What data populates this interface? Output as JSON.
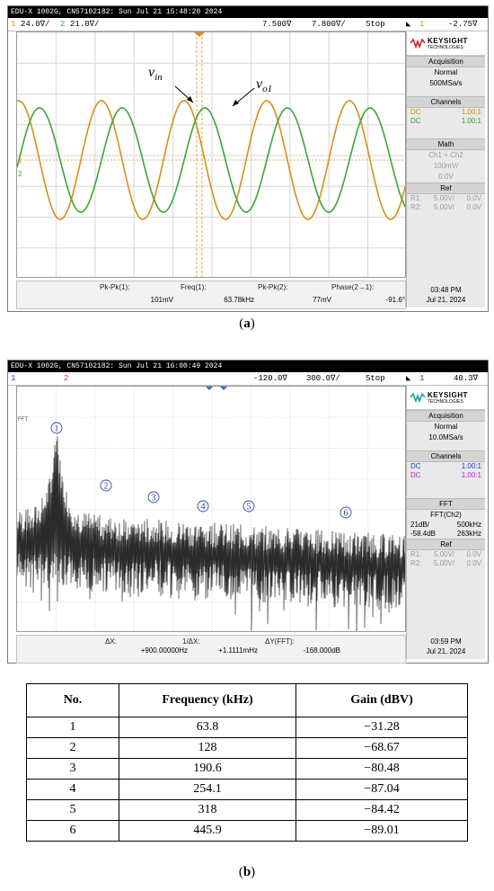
{
  "scope_a": {
    "header": "EDU-X 1002G, CN57102182: Sun Jul 21 15:48:20 2024",
    "ch1_num": "1",
    "ch1_scale": "24.0∇/",
    "ch2_num": "2",
    "ch2_scale": "21.0∇/",
    "time_pos": "7.500∇",
    "time_scale": "7.800∇/",
    "run_state": "Stop",
    "trig_src": "1",
    "trig_level": "-2.75∇",
    "brand": "KEYSIGHT",
    "brand_sub": "TECHNOLOGIES",
    "acquisition": {
      "title": "Acquisition",
      "mode": "Normal",
      "rate": "500MSa/s"
    },
    "channels": {
      "title": "Channels",
      "rows": [
        {
          "coupling": "DC",
          "ratio": "1.00:1"
        },
        {
          "coupling": "DC",
          "ratio": "1.00:1"
        }
      ]
    },
    "math": {
      "title": "Math",
      "func": "Ch1 + Ch2",
      "scale": "100mV/",
      "offset": "0.0V"
    },
    "ref": {
      "title": "Ref",
      "r1": "R1:",
      "r1_scale": "5.00V/",
      "r1_off": "0.0V",
      "r2": "R2:",
      "r2_scale": "5.00V/",
      "r2_off": "0.0V"
    },
    "time_of_day": "03:48 PM",
    "date": "Jul 21, 2024",
    "label_vin": "v",
    "label_vin_sub": "in",
    "label_vo1": "v",
    "label_vo1_sub": "o1",
    "gnd1": "1",
    "gnd2": "2",
    "measurements": [
      {
        "name": "Pk-Pk(1):",
        "value": "101mV"
      },
      {
        "name": "Freq(1):",
        "value": "63.78kHz"
      },
      {
        "name": "Pk-Pk(2):",
        "value": "77mV"
      },
      {
        "name": "Phase(2→1):",
        "value": "-91.6°"
      }
    ],
    "colors": {
      "ch1": "#d98e1a",
      "ch2": "#3aa63a"
    }
  },
  "caption_a": "a",
  "scope_b": {
    "header": "EDU-X 1002G, CN57102182: Sun Jul 21 16:00:49 2024",
    "ch1_num": "1",
    "ch2_num": "2",
    "time_pos": "-120.0∇",
    "time_scale": "300.0∇/",
    "run_state": "Stop",
    "trig_src": "1",
    "trig_level": "40.3∇",
    "brand": "KEYSIGHT",
    "brand_sub": "TECHNOLOGIES",
    "acquisition": {
      "title": "Acquisition",
      "mode": "Normal",
      "rate": "10.0MSa/s"
    },
    "channels": {
      "title": "Channels",
      "rows": [
        {
          "coupling": "DC",
          "ratio": "1.00:1"
        },
        {
          "coupling": "DC",
          "ratio": "1.00:1"
        }
      ]
    },
    "fft": {
      "title": "FFT",
      "func": "FFT(Ch2)",
      "scale": "21dB/",
      "span": "500kHz",
      "offset": "-58.4dB",
      "center": "263kHz"
    },
    "ref": {
      "title": "Ref",
      "r1": "R1:",
      "r1_scale": "5.00V/",
      "r1_off": "0.0V",
      "r2": "R2:",
      "r2_scale": "5.00V/",
      "r2_off": "0.0V"
    },
    "time_of_day": "03:59 PM",
    "date": "Jul 21, 2024",
    "fft_marker": "FFT",
    "peaks": [
      "1",
      "2",
      "3",
      "4",
      "5",
      "6"
    ],
    "measurements": [
      {
        "name": "ΔX:",
        "value": "+900.00000Hz"
      },
      {
        "name": "1/ΔX:",
        "value": "+1.1111mHz"
      },
      {
        "name": "ΔY(FFT):",
        "value": "-168.000dB"
      }
    ]
  },
  "caption_b": "b",
  "table": {
    "headers": [
      "No.",
      "Frequency (kHz)",
      "Gain (dBV)"
    ],
    "rows": [
      [
        "1",
        "63.8",
        "−31.28"
      ],
      [
        "2",
        "128",
        "−68.67"
      ],
      [
        "3",
        "190.6",
        "−80.48"
      ],
      [
        "4",
        "254.1",
        "−87.04"
      ],
      [
        "5",
        "318",
        "−84.42"
      ],
      [
        "6",
        "445.9",
        "−89.01"
      ]
    ]
  }
}
